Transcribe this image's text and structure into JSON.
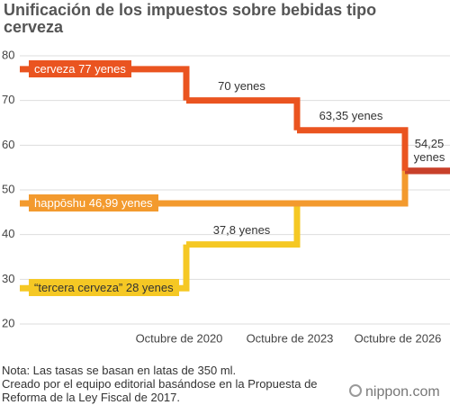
{
  "chart_data": {
    "type": "step",
    "title": "Unificación de los impuestos sobre bebidas tipo cerveza",
    "categories": [
      null,
      "Octubre de 2020",
      "Octubre de 2023",
      "Octubre de 2026"
    ],
    "series": [
      {
        "color": "#f5c824",
        "values": [
          28,
          37.8,
          46.99,
          54.25
        ],
        "value_labels": [
          "“tercera cerveza” 28 yenes",
          "37,8 yenes",
          null,
          null
        ]
      },
      {
        "color": "#f39a2e",
        "values": [
          46.99,
          46.99,
          46.99,
          54.25
        ],
        "value_labels": [
          "happōshu 46,99 yenes",
          null,
          null,
          null
        ]
      },
      {
        "color": "#ea5420",
        "values": [
          77,
          70,
          63.35,
          54.25
        ],
        "value_labels": [
          "cerveza 77 yenes",
          "70 yenes",
          "63,35 yenes",
          "54,25 yenes"
        ]
      }
    ],
    "final_color": "#c8402a",
    "ylim": [
      20,
      80
    ],
    "yticks": [
      20,
      30,
      40,
      50,
      60,
      70,
      80
    ],
    "grid": true,
    "notes": [
      "Nota: Las tasas se basan en latas de 350 ml.",
      "Creado por el equipo editorial basándose en la Propuesta de Reforma de la Ley Fiscal de 2017."
    ],
    "logo": "nippon.com"
  }
}
